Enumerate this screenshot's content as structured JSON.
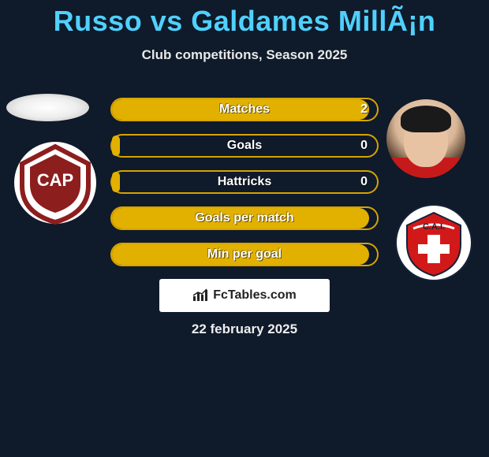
{
  "title": {
    "text": "Russo vs Galdames MillÃ¡n",
    "color": "#4fd1ff"
  },
  "subtitle": "Club competitions, Season 2025",
  "accent": {
    "border": "#d6a300",
    "fill": "#e2b100"
  },
  "stats": [
    {
      "label": "Matches",
      "value": "2",
      "fill_pct": 97
    },
    {
      "label": "Goals",
      "value": "0",
      "fill_pct": 3
    },
    {
      "label": "Hattricks",
      "value": "0",
      "fill_pct": 3
    },
    {
      "label": "Goals per match",
      "value": "",
      "fill_pct": 97
    },
    {
      "label": "Min per goal",
      "value": "",
      "fill_pct": 97
    }
  ],
  "left_club": {
    "name": "club-platense-badge",
    "primary": "#8d1e1e",
    "secondary": "#ffffff",
    "text": "CAP"
  },
  "right_club": {
    "name": "club-independiente-badge",
    "primary": "#d21919",
    "secondary": "#ffffff",
    "text": "C.A.I."
  },
  "left_player": {
    "name": "russo-avatar"
  },
  "right_player": {
    "name": "galdames-millan-avatar"
  },
  "attribution": {
    "brand": "FcTables.com",
    "icon": "bar-chart-icon"
  },
  "date": "22 february 2025"
}
